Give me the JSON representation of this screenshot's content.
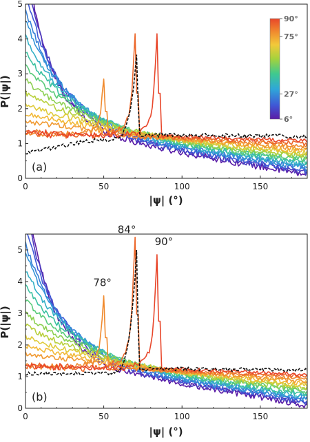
{
  "chart_data": [
    {
      "type": "line",
      "panel_label": "(a)",
      "xlabel": "|ψ| (°)",
      "ylabel": "P(|ψ|)",
      "xlim": [
        0,
        180
      ],
      "ylim": [
        0,
        5
      ],
      "xticks": [
        0,
        50,
        100,
        150
      ],
      "yticks": [
        0,
        1,
        2,
        3,
        4,
        5
      ],
      "grid": false,
      "legend": "colorbar top-right",
      "colorbar": {
        "ticks": [
          "90°",
          "75°",
          "27°",
          "6°"
        ],
        "tick_values": [
          90,
          75,
          27,
          6
        ],
        "range": [
          6,
          90
        ],
        "colormap": [
          "#5b1ca6",
          "#3f59d6",
          "#2fa7d8",
          "#3fc98f",
          "#a5d23c",
          "#f2c93a",
          "#f08a2e",
          "#e8462a"
        ]
      },
      "series_summary": {
        "curve_count": 16,
        "parameter_values_deg": [
          6,
          12,
          18,
          24,
          27,
          33,
          39,
          45,
          51,
          57,
          63,
          69,
          75,
          78,
          84,
          90
        ],
        "low_angle_start_max": 5.0,
        "flat_level": 1.3,
        "tail_range_at_180": [
          0.1,
          1.0
        ]
      },
      "peaks": [
        {
          "angle": 78,
          "x": 50,
          "y": 2.85
        },
        {
          "angle": 84,
          "x": 70,
          "y": 4.15
        },
        {
          "angle": 90,
          "x": 84,
          "y": 4.15
        }
      ],
      "reference_curve": {
        "style": "black dashed",
        "peak_x": 71,
        "peak_y": 3.55,
        "start_y": 0.75,
        "plateau_y": 1.25
      }
    },
    {
      "type": "line",
      "panel_label": "(b)",
      "xlabel": "|ψ| (°)",
      "ylabel": "P(|ψ|)",
      "xlim": [
        0,
        180
      ],
      "ylim": [
        0,
        5.5
      ],
      "xticks": [
        0,
        50,
        100,
        150
      ],
      "yticks": [
        0,
        1,
        2,
        3,
        4,
        5
      ],
      "grid": false,
      "annotations": [
        {
          "text": "78°",
          "x": 50,
          "y": 3.55
        },
        {
          "text": "84°",
          "x": 70,
          "y": 5.4
        },
        {
          "text": "90°",
          "x": 84,
          "y": 4.85
        }
      ],
      "series_summary": {
        "curve_count": 16,
        "parameter_values_deg": [
          6,
          12,
          18,
          24,
          27,
          33,
          39,
          45,
          51,
          57,
          63,
          69,
          75,
          78,
          84,
          90
        ],
        "low_angle_start_max": 5.5,
        "flat_level": 1.35,
        "tail_range_at_180": [
          0.1,
          1.0
        ]
      },
      "peaks": [
        {
          "angle": 78,
          "x": 50,
          "y": 3.55
        },
        {
          "angle": 84,
          "x": 70,
          "y": 5.4
        },
        {
          "angle": 90,
          "x": 84,
          "y": 4.85
        }
      ],
      "reference_curve": {
        "style": "black dashed",
        "peak_x": 71,
        "peak_y": 5.0,
        "start_y": 1.1,
        "plateau_y": 1.25
      }
    }
  ]
}
